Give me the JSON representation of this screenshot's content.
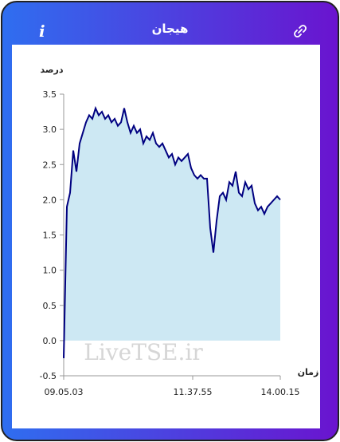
{
  "header": {
    "title": "هیجان",
    "info_icon": "i"
  },
  "chart_data": {
    "type": "area",
    "y_label": "درصد",
    "x_label": "زمان",
    "watermark": "LiveTSE.ir",
    "x": [
      0,
      1,
      2,
      3,
      4,
      5,
      6,
      7,
      8,
      9,
      10,
      11,
      12,
      13,
      14,
      15,
      16,
      17,
      18,
      19,
      20,
      21,
      22,
      23,
      24,
      25,
      26,
      27,
      28,
      29,
      30,
      31,
      32,
      33,
      34,
      35,
      36,
      37,
      38,
      39,
      40,
      41,
      42,
      43,
      44,
      45,
      46,
      47,
      48,
      49,
      50,
      51,
      52,
      53,
      54,
      55,
      56,
      57,
      58,
      59,
      60,
      61,
      62,
      63,
      64,
      65,
      66,
      67,
      68
    ],
    "series": [
      {
        "color": "#000080",
        "fill": "#cde8f3",
        "values": [
          -0.25,
          1.9,
          2.1,
          2.7,
          2.4,
          2.8,
          2.95,
          3.1,
          3.2,
          3.15,
          3.3,
          3.2,
          3.25,
          3.15,
          3.2,
          3.1,
          3.15,
          3.05,
          3.1,
          3.3,
          3.1,
          2.95,
          3.05,
          2.95,
          3.0,
          2.8,
          2.9,
          2.85,
          2.95,
          2.8,
          2.75,
          2.8,
          2.7,
          2.6,
          2.65,
          2.5,
          2.6,
          2.55,
          2.6,
          2.65,
          2.45,
          2.35,
          2.3,
          2.35,
          2.3,
          2.3,
          1.6,
          1.25,
          1.7,
          2.05,
          2.1,
          2.0,
          2.25,
          2.2,
          2.4,
          2.1,
          2.05,
          2.25,
          2.15,
          2.2,
          1.95,
          1.85,
          1.9,
          1.8,
          1.9,
          1.95,
          2.0,
          2.05,
          2.0
        ]
      }
    ],
    "xlim": [
      0,
      68
    ],
    "xticks": [
      {
        "value": 0,
        "label": "09.05.03"
      },
      {
        "value": 40.5,
        "label": "11.37.55"
      },
      {
        "value": 68,
        "label": "14.00.15"
      }
    ],
    "ylim": [
      -0.5,
      3.5
    ],
    "yticks": [
      -0.5,
      {
        "value": 0,
        "label": "0.0"
      },
      0.5,
      {
        "value": 1,
        "label": "1.0"
      },
      1.5,
      {
        "value": 2,
        "label": "2.0"
      },
      2.5,
      {
        "value": 3,
        "label": "3.0"
      },
      3.5
    ]
  }
}
